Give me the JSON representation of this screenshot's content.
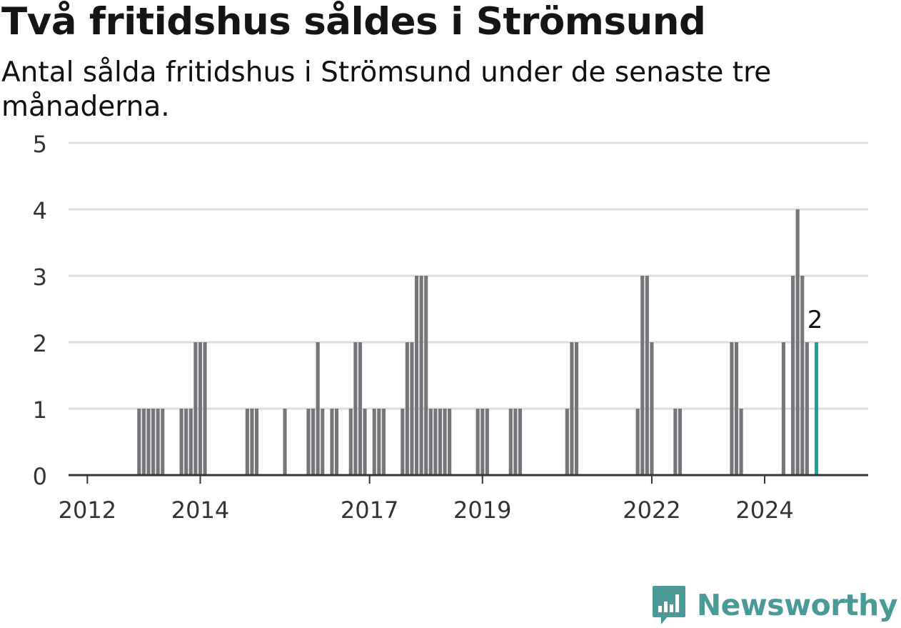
{
  "title": "Två fritidshus såldes i Strömsund",
  "subtitle": "Antal sålda fritidshus i Strömsund under de senaste tre månaderna.",
  "brand": {
    "name": "Newsworthy",
    "logo_icon": "newsworthy-logo-icon"
  },
  "colors": {
    "bar": "#75757a",
    "highlight": "#17a398",
    "grid": "#dddddd",
    "axis": "#333333",
    "brand": "#4a9a97"
  },
  "chart_data": {
    "type": "bar",
    "title": "Två fritidshus såldes i Strömsund",
    "subtitle": "Antal sålda fritidshus i Strömsund under de senaste tre månaderna.",
    "xlabel": "",
    "ylabel": "",
    "ylim": [
      0,
      5
    ],
    "yticks": [
      0,
      1,
      2,
      3,
      4,
      5
    ],
    "grid": true,
    "xlim": [
      "2011-09",
      "2025-11"
    ],
    "xticks": [
      "2012",
      "2014",
      "2017",
      "2019",
      "2022",
      "2024"
    ],
    "highlight": {
      "x": "2024-12",
      "value": 2,
      "label": "2"
    },
    "x": [
      "2012-12",
      "2013-01",
      "2013-02",
      "2013-03",
      "2013-04",
      "2013-05",
      "2013-09",
      "2013-10",
      "2013-11",
      "2013-12",
      "2014-01",
      "2014-02",
      "2014-11",
      "2014-12",
      "2015-01",
      "2015-07",
      "2015-12",
      "2016-01",
      "2016-02",
      "2016-03",
      "2016-05",
      "2016-06",
      "2016-09",
      "2016-10",
      "2016-11",
      "2016-12",
      "2017-02",
      "2017-03",
      "2017-04",
      "2017-08",
      "2017-09",
      "2017-10",
      "2017-11",
      "2017-12",
      "2018-01",
      "2018-02",
      "2018-03",
      "2018-04",
      "2018-05",
      "2018-06",
      "2018-12",
      "2019-01",
      "2019-02",
      "2019-07",
      "2019-08",
      "2019-09",
      "2020-07",
      "2020-08",
      "2020-09",
      "2021-10",
      "2021-11",
      "2021-12",
      "2022-01",
      "2022-06",
      "2022-07",
      "2023-06",
      "2023-07",
      "2023-08",
      "2024-05",
      "2024-07",
      "2024-08",
      "2024-09",
      "2024-10",
      "2024-12"
    ],
    "values": [
      1,
      1,
      1,
      1,
      1,
      1,
      1,
      1,
      1,
      2,
      2,
      2,
      1,
      1,
      1,
      1,
      1,
      1,
      2,
      1,
      1,
      1,
      1,
      2,
      2,
      1,
      1,
      1,
      1,
      1,
      2,
      2,
      3,
      3,
      3,
      1,
      1,
      1,
      1,
      1,
      1,
      1,
      1,
      1,
      1,
      1,
      1,
      2,
      2,
      1,
      3,
      3,
      2,
      1,
      1,
      2,
      2,
      1,
      2,
      3,
      4,
      3,
      2,
      2
    ]
  }
}
